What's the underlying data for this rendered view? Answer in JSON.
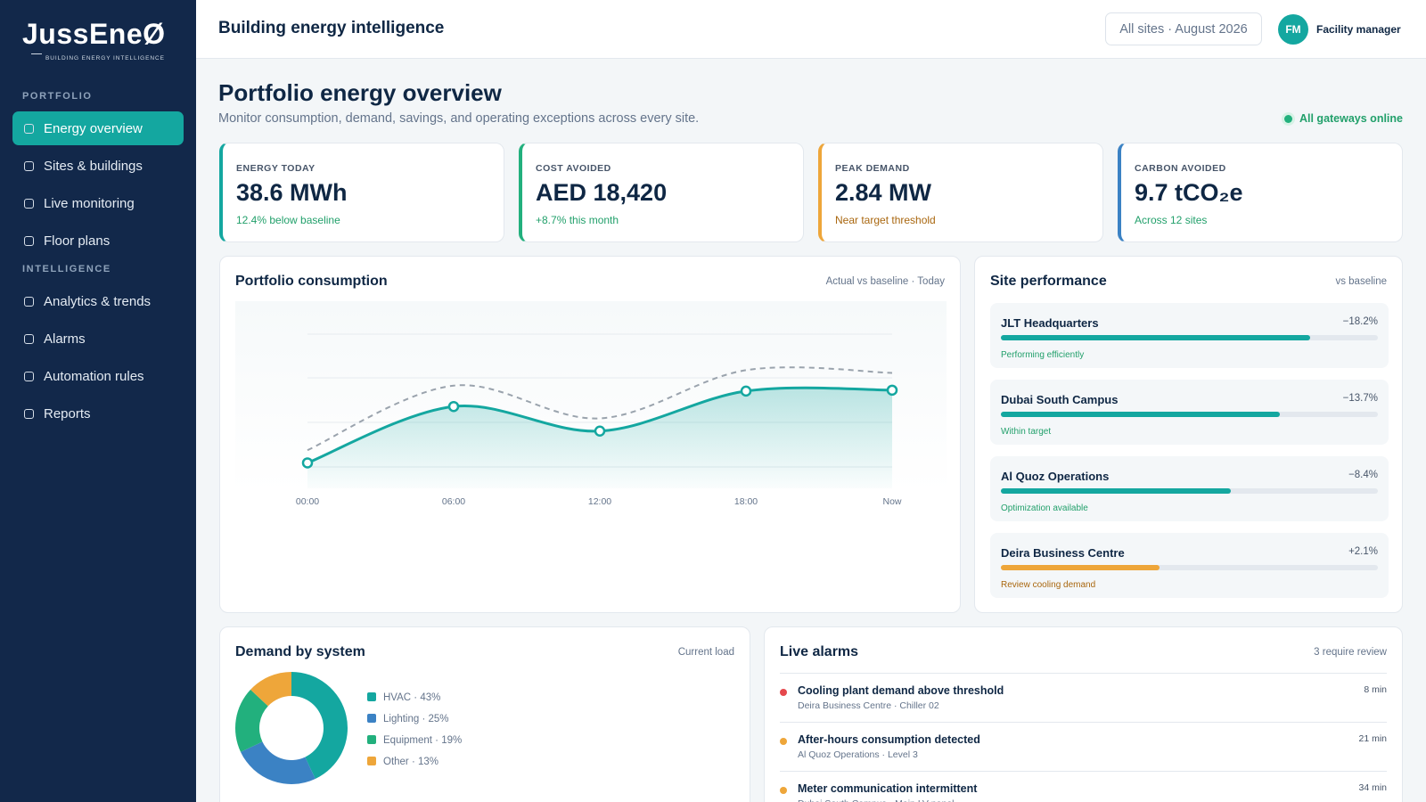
{
  "brand": {
    "name": "JussEneØ",
    "tagline": "BUILDING ENERGY INTELLIGENCE"
  },
  "nav": [
    {
      "heading": "PORTFOLIO",
      "items": [
        "Energy overview",
        "Sites & buildings",
        "Live monitoring",
        "Floor plans"
      ]
    },
    {
      "heading": "INTELLIGENCE",
      "items": [
        "Analytics & trends",
        "Alarms",
        "Automation rules",
        "Reports"
      ]
    }
  ],
  "active_nav": "Energy overview",
  "header": {
    "title": "Building energy intelligence",
    "scope": "All sites · August 2026",
    "avatar": "FM",
    "role": "Facility manager"
  },
  "page": {
    "title": "Portfolio energy overview",
    "subtitle": "Monitor consumption, demand, savings, and operating exceptions across every site.",
    "status": "All gateways online"
  },
  "kpis": [
    {
      "label": "ENERGY TODAY",
      "value": "38.6 MWh",
      "note": "12.4% below baseline",
      "accent": "#14a7a0",
      "note_color": "#22a06b"
    },
    {
      "label": "COST AVOIDED",
      "value": "AED 18,420",
      "note": "+8.7% this month",
      "accent": "#22b07d",
      "note_color": "#22a06b"
    },
    {
      "label": "PEAK DEMAND",
      "value": "2.84 MW",
      "note": "Near target threshold",
      "accent": "#eea63a",
      "note_color": "#a9670f"
    },
    {
      "label": "CARBON AVOIDED",
      "value": "9.7 tCO₂e",
      "note": "Across 12 sites",
      "accent": "#3b82c4",
      "note_color": "#22a06b"
    }
  ],
  "chart_data": [
    {
      "type": "line",
      "title": "Portfolio consumption",
      "subtitle": "Actual vs baseline · Today",
      "categories": [
        "00:00",
        "06:00",
        "12:00",
        "18:00",
        "Now"
      ],
      "ylim": [
        0,
        100
      ],
      "series": [
        {
          "color": "#9aa3ad",
          "line_style": "dashed",
          "values": [
            21,
            56.5,
            38.5,
            65,
            63.5
          ]
        },
        {
          "color": "#14a7a0",
          "line_style": "solid",
          "area": true,
          "values": [
            14,
            45,
            31.5,
            53.5,
            54
          ]
        }
      ]
    },
    {
      "type": "pie",
      "donut": true,
      "title": "Demand by system",
      "subtitle": "Current load",
      "values": [
        43,
        25,
        19,
        13
      ],
      "value_labels": [
        "HVAC · 43%",
        "Lighting · 25%",
        "Equipment · 19%",
        "Other · 13%"
      ],
      "colors": [
        "#14a7a0",
        "#3b82c4",
        "#22b07d",
        "#eea63a"
      ]
    }
  ],
  "sites": {
    "title": "Site performance",
    "subtitle": "vs baseline",
    "items": [
      {
        "name": "JLT Headquarters",
        "change": "−18.2%",
        "status": "Performing efficiently",
        "score": 82,
        "color": "#14a7a0",
        "status_color": "#22a06b"
      },
      {
        "name": "Dubai South Campus",
        "change": "−13.7%",
        "status": "Within target",
        "score": 74,
        "color": "#14a7a0",
        "status_color": "#22a06b"
      },
      {
        "name": "Al Quoz Operations",
        "change": "−8.4%",
        "status": "Optimization available",
        "score": 61,
        "color": "#14a7a0",
        "status_color": "#22a06b"
      },
      {
        "name": "Deira Business Centre",
        "change": "+2.1%",
        "status": "Review cooling demand",
        "score": 42,
        "color": "#eea63a",
        "status_color": "#a9670f"
      }
    ]
  },
  "alarms": {
    "title": "Live alarms",
    "subtitle": "3 require review",
    "items": [
      {
        "title": "Cooling plant demand above threshold",
        "detail": "Deira Business Centre · Chiller 02",
        "time": "8 min",
        "color": "#e5484d"
      },
      {
        "title": "After-hours consumption detected",
        "detail": "Al Quoz Operations · Level 3",
        "time": "21 min",
        "color": "#eea63a"
      },
      {
        "title": "Meter communication intermittent",
        "detail": "Dubai South Campus · Main LV panel",
        "time": "34 min",
        "color": "#eea63a"
      }
    ]
  }
}
